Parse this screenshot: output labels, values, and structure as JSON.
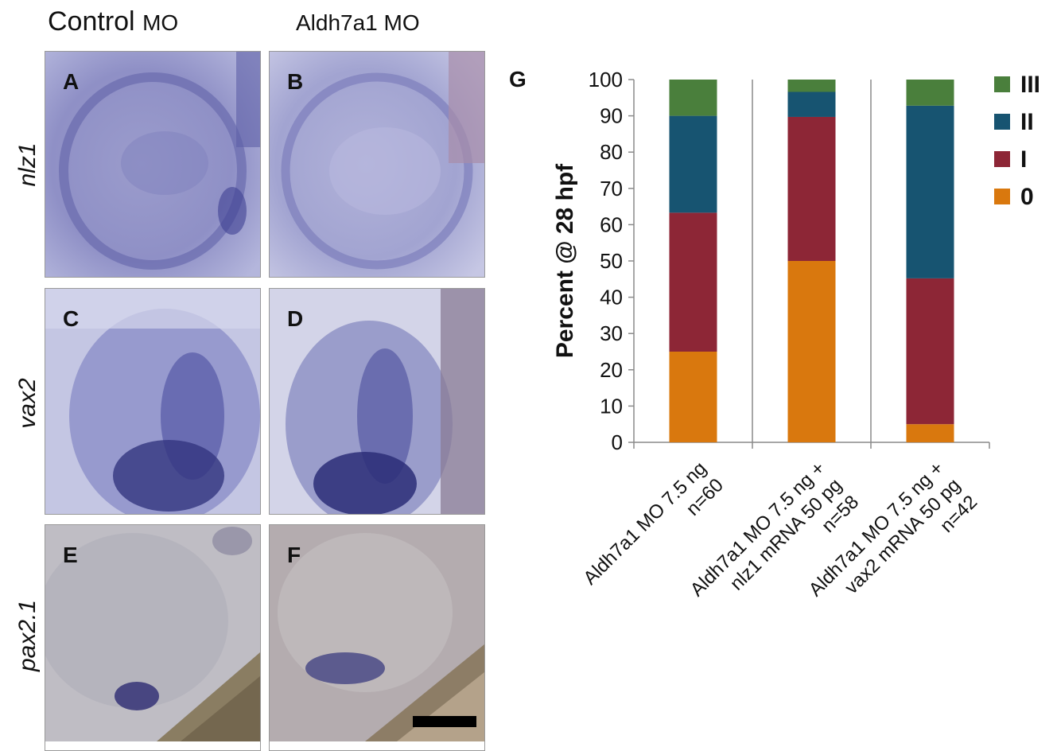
{
  "column_titles": [
    {
      "main": "Control",
      "suffix": "MO"
    },
    {
      "main": "",
      "suffix": "Aldh7a1 MO"
    }
  ],
  "row_labels": [
    "nlz1",
    "vax2",
    "pax2.1"
  ],
  "panel_letters": [
    "A",
    "B",
    "C",
    "D",
    "E",
    "F"
  ],
  "colors": {
    "III": "#4a7f3c",
    "II": "#175471",
    "I": "#8d2636",
    "0": "#d9780e",
    "stain": "#4d4f9e",
    "scale_bar": "#000000"
  },
  "chart_data": {
    "type": "bar",
    "stacked": true,
    "panel_label": "G",
    "ylabel": "Percent @ 28 hpf",
    "xlabel": "",
    "ylim": [
      0,
      100
    ],
    "yticks": [
      0,
      10,
      20,
      30,
      40,
      50,
      60,
      70,
      80,
      90,
      100
    ],
    "categories": [
      [
        "Aldh7a1 MO 7.5 ng",
        "n=60"
      ],
      [
        "Aldh7a1 MO 7.5 ng +",
        "nlz1 mRNA 50 pg",
        "n=58"
      ],
      [
        "Aldh7a1 MO 7.5 ng +",
        "vax2 mRNA 50 pg",
        "n=42"
      ]
    ],
    "series": [
      {
        "name": "0",
        "values": [
          25,
          50,
          5
        ]
      },
      {
        "name": "I",
        "values": [
          38.3,
          39.7,
          40.2
        ]
      },
      {
        "name": "II",
        "values": [
          26.7,
          6.9,
          47.6
        ]
      },
      {
        "name": "III",
        "values": [
          10,
          3.4,
          7.2
        ]
      }
    ],
    "legend_order": [
      "III",
      "II",
      "I",
      "0"
    ],
    "legend_position": "right",
    "grid": false
  }
}
